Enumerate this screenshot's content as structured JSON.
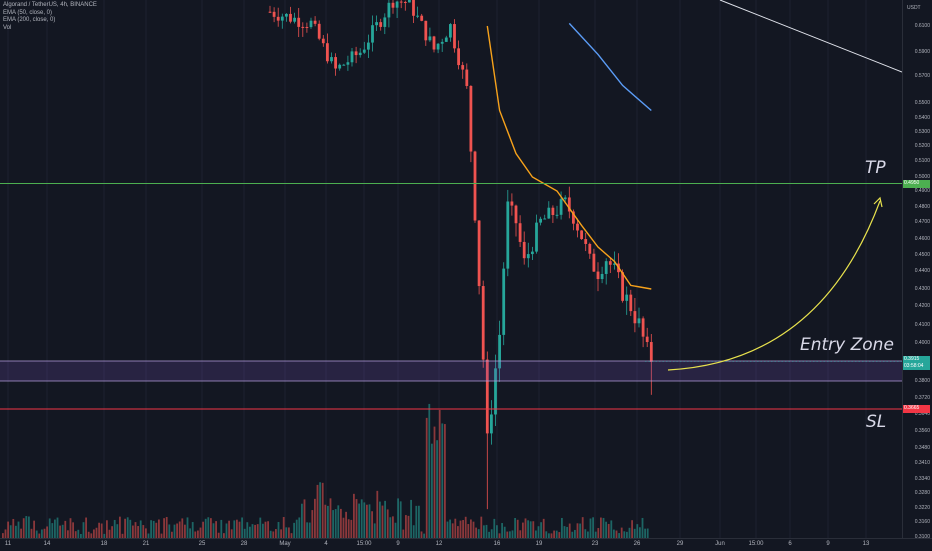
{
  "legend": {
    "symbol": "Algorand / TetherUS, 4h, BINANCE",
    "ema50": "EMA (50, close, 0)",
    "ema200": "EMA (200, close, 0)",
    "vol": "Vol"
  },
  "price_axis": {
    "currency": "USDT",
    "labels": [
      "0.6100",
      "0.5900",
      "0.5700",
      "0.5500",
      "0.5400",
      "0.5300",
      "0.5200",
      "0.5100",
      "0.5000",
      "0.4900",
      "0.4800",
      "0.4700",
      "0.4600",
      "0.4500",
      "0.4400",
      "0.4300",
      "0.4200",
      "0.4100",
      "0.4000",
      "0.3800",
      "0.3720",
      "0.3640",
      "0.3560",
      "0.3480",
      "0.3410",
      "0.3340",
      "0.3280",
      "0.3220",
      "0.3160",
      "0.3100"
    ]
  },
  "badges": {
    "tp_price": "0.4950",
    "current_price": "0.3915",
    "countdown": "03:58:04",
    "sl_price": "0.3665"
  },
  "time_axis": {
    "labels": [
      "11",
      "14",
      "18",
      "21",
      "25",
      "28",
      "May",
      "4",
      "15:00",
      "9",
      "12",
      "16",
      "19",
      "23",
      "26",
      "29",
      "Jun",
      "15:00",
      "6",
      "9",
      "13"
    ]
  },
  "annotations": {
    "tp": "TP",
    "entry": "Entry Zone",
    "sl": "SL"
  },
  "colors": {
    "background": "#131722",
    "up_candle": "#26a69a",
    "down_candle": "#ef5350",
    "ema50": "#f7a21b",
    "ema200": "#5b9cf6",
    "tp_line": "#4caf50",
    "sl_line": "#f23645",
    "entry_zone": "#9c6ade",
    "arrow": "#e8e24d",
    "trendline": "#e0e3eb"
  },
  "chart_data": {
    "type": "candlestick",
    "symbol": "ALGOUSDT",
    "timeframe": "4h",
    "y_range": [
      0.31,
      0.61
    ],
    "levels": {
      "take_profit": 0.495,
      "entry_upper": 0.3915,
      "entry_lower": 0.38,
      "stop_loss": 0.3665
    },
    "price_path": [
      {
        "i": 0,
        "p": 0.621
      },
      {
        "i": 10,
        "p": 0.612
      },
      {
        "i": 16,
        "p": 0.575
      },
      {
        "i": 22,
        "p": 0.59
      },
      {
        "i": 26,
        "p": 0.61
      },
      {
        "i": 30,
        "p": 0.63
      },
      {
        "i": 34,
        "p": 0.628
      },
      {
        "i": 40,
        "p": 0.592
      },
      {
        "i": 44,
        "p": 0.61
      },
      {
        "i": 48,
        "p": 0.56
      },
      {
        "i": 53,
        "p": 0.35
      },
      {
        "i": 56,
        "p": 0.405
      },
      {
        "i": 58,
        "p": 0.48
      },
      {
        "i": 60,
        "p": 0.47
      },
      {
        "i": 62,
        "p": 0.445
      },
      {
        "i": 66,
        "p": 0.47
      },
      {
        "i": 70,
        "p": 0.478
      },
      {
        "i": 72,
        "p": 0.482
      },
      {
        "i": 74,
        "p": 0.474
      },
      {
        "i": 76,
        "p": 0.462
      },
      {
        "i": 78,
        "p": 0.446
      },
      {
        "i": 80,
        "p": 0.44
      },
      {
        "i": 82,
        "p": 0.448
      },
      {
        "i": 84,
        "p": 0.44
      },
      {
        "i": 86,
        "p": 0.428
      },
      {
        "i": 88,
        "p": 0.42
      },
      {
        "i": 90,
        "p": 0.41
      },
      {
        "i": 92,
        "p": 0.395
      },
      {
        "i": 93,
        "p": 0.392
      }
    ],
    "ema50_path": [
      {
        "i": 53,
        "p": 0.61
      },
      {
        "i": 56,
        "p": 0.545
      },
      {
        "i": 60,
        "p": 0.515
      },
      {
        "i": 64,
        "p": 0.5
      },
      {
        "i": 70,
        "p": 0.49
      },
      {
        "i": 76,
        "p": 0.468
      },
      {
        "i": 80,
        "p": 0.455
      },
      {
        "i": 84,
        "p": 0.446
      },
      {
        "i": 88,
        "p": 0.432
      },
      {
        "i": 93,
        "p": 0.43
      }
    ],
    "ema200_path": [
      {
        "i": 73,
        "p": 0.612
      },
      {
        "i": 80,
        "p": 0.588
      },
      {
        "i": 86,
        "p": 0.563
      },
      {
        "i": 93,
        "p": 0.545
      }
    ]
  }
}
